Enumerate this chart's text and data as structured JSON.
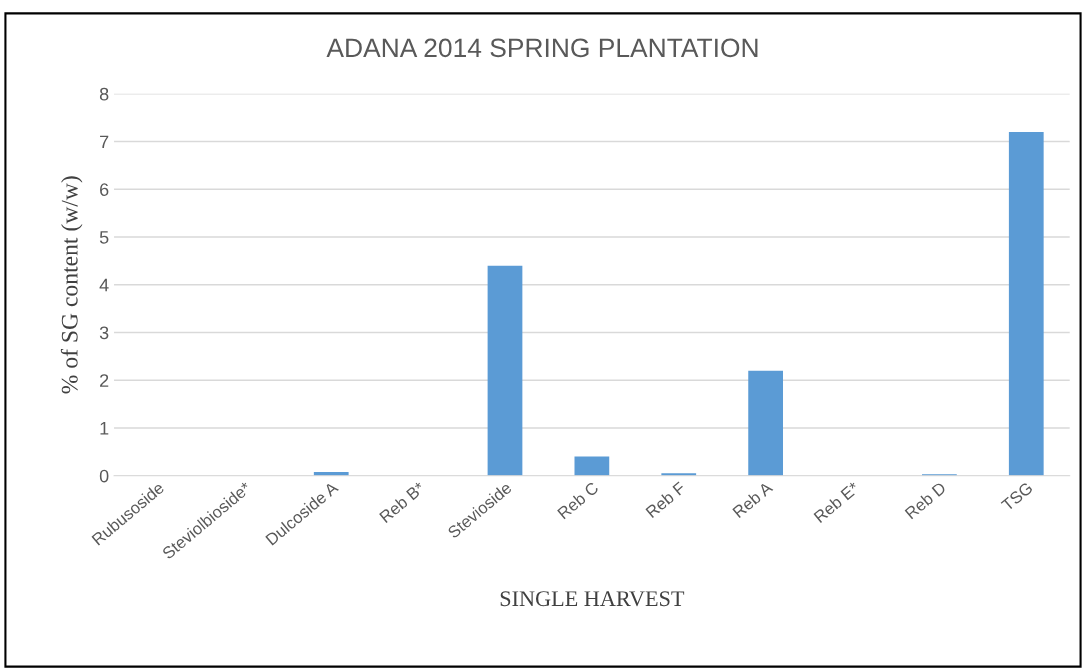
{
  "chart_data": {
    "type": "bar",
    "title": "ADANA 2014 SPRING PLANTATION",
    "xlabel": "SINGLE HARVEST",
    "ylabel": "% of SG content (w/w)",
    "categories": [
      "Rubusoside",
      "Steviolbioside*",
      "Dulcoside A",
      "Reb B*",
      "Stevioside",
      "Reb C",
      "Reb F",
      "Reb A",
      "Reb E*",
      "Reb D",
      "TSG"
    ],
    "values": [
      0,
      0,
      0.08,
      0,
      4.4,
      0.4,
      0.05,
      2.2,
      0,
      0.03,
      7.2
    ],
    "color": "#5b9bd5",
    "ylim": [
      0,
      8
    ],
    "yticks": [
      0,
      1,
      2,
      3,
      4,
      5,
      6,
      7,
      8
    ],
    "grid": "y",
    "legend": false
  }
}
